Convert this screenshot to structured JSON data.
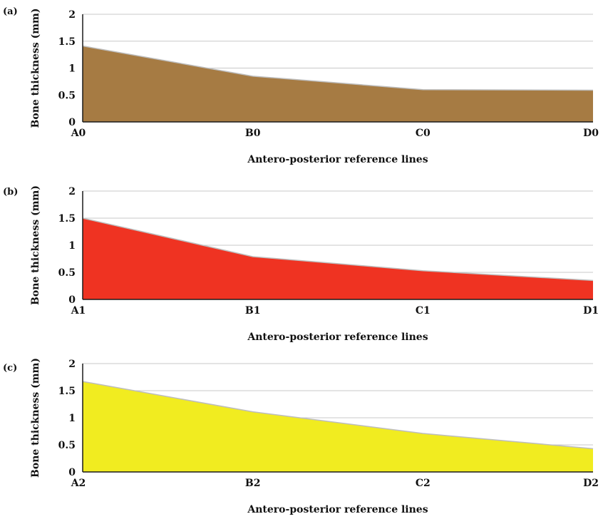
{
  "chart_data": [
    {
      "type": "area",
      "panel_label": "(a)",
      "categories": [
        "A0",
        "B0",
        "C0",
        "D0"
      ],
      "values": [
        1.41,
        0.85,
        0.6,
        0.59
      ],
      "xlabel": "Antero-posterior reference lines",
      "ylabel": "Bone thickness (mm)",
      "ylim": [
        0,
        2
      ],
      "yticks": [
        "0",
        "0.5",
        "1",
        "1.5",
        "2"
      ],
      "grid": true,
      "legend": "none",
      "fill_color": "#a67b43"
    },
    {
      "type": "area",
      "panel_label": "(b)",
      "categories": [
        "A1",
        "B1",
        "C1",
        "D1"
      ],
      "values": [
        1.5,
        0.79,
        0.53,
        0.35
      ],
      "xlabel": "Antero-posterior reference lines",
      "ylabel": "Bone thickness (mm)",
      "ylim": [
        0,
        2
      ],
      "yticks": [
        "0",
        "0.5",
        "1",
        "1.5",
        "2"
      ],
      "grid": true,
      "legend": "none",
      "fill_color": "#ef3322"
    },
    {
      "type": "area",
      "panel_label": "(c)",
      "categories": [
        "A2",
        "B2",
        "C2",
        "D2"
      ],
      "values": [
        1.67,
        1.11,
        0.71,
        0.43
      ],
      "xlabel": "Antero-posterior reference lines",
      "ylabel": "Bone thickness (mm)",
      "ylim": [
        0,
        2
      ],
      "yticks": [
        "0",
        "0.5",
        "1",
        "1.5",
        "2"
      ],
      "grid": true,
      "legend": "none",
      "fill_color": "#f1ec20"
    }
  ]
}
